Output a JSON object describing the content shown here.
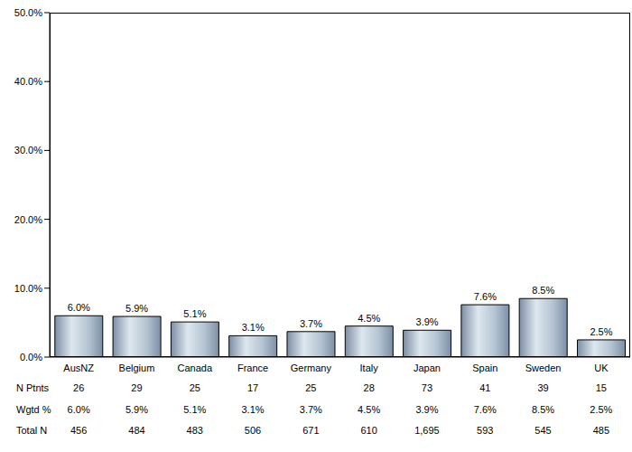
{
  "chart_data": {
    "type": "bar",
    "categories": [
      "AusNZ",
      "Belgium",
      "Canada",
      "France",
      "Germany",
      "Italy",
      "Japan",
      "Spain",
      "Sweden",
      "UK"
    ],
    "values": [
      6.0,
      5.9,
      5.1,
      3.1,
      3.7,
      4.5,
      3.9,
      7.6,
      8.5,
      2.5
    ],
    "value_labels": [
      "6.0%",
      "5.9%",
      "5.1%",
      "3.1%",
      "3.7%",
      "4.5%",
      "3.9%",
      "7.6%",
      "8.5%",
      "2.5%"
    ],
    "data_labels": true,
    "color": "#b4c4d2",
    "grid": false,
    "ylim": [
      0,
      50
    ],
    "yticks": [
      {
        "value": 0,
        "label": "0.0%"
      },
      {
        "value": 10,
        "label": "10.0%"
      },
      {
        "value": 20,
        "label": "20.0%"
      },
      {
        "value": 30,
        "label": "30.0%"
      },
      {
        "value": 40,
        "label": "40.0%"
      },
      {
        "value": 50,
        "label": "50.0%"
      }
    ],
    "table": [
      {
        "name": "N Ptnts",
        "values": [
          26,
          29,
          25,
          17,
          25,
          28,
          73,
          41,
          39,
          15
        ]
      },
      {
        "name": "Wgtd %",
        "values": [
          6.0,
          5.9,
          5.1,
          3.1,
          3.7,
          4.5,
          3.9,
          7.6,
          8.5,
          2.5
        ],
        "value_labels": [
          "6.0%",
          "5.9%",
          "5.1%",
          "3.1%",
          "3.7%",
          "4.5%",
          "3.9%",
          "7.6%",
          "8.5%",
          "2.5%"
        ]
      },
      {
        "name": "Total N",
        "values": [
          456,
          484,
          483,
          506,
          671,
          610,
          1695,
          593,
          545,
          485
        ],
        "value_labels": [
          "456",
          "484",
          "483",
          "506",
          "671",
          "610",
          "1,695",
          "593",
          "545",
          "485"
        ]
      }
    ]
  }
}
